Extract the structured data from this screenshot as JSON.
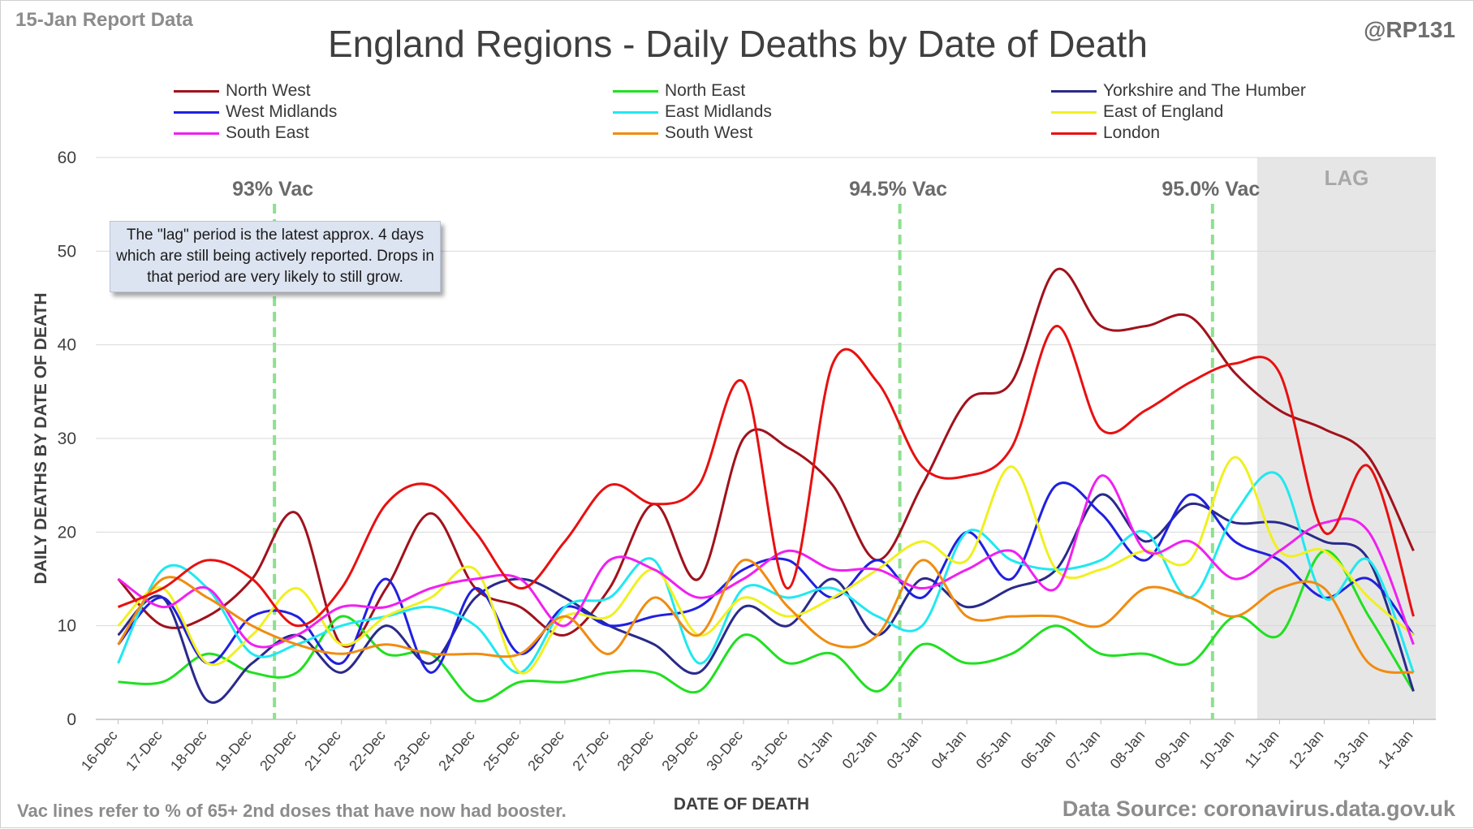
{
  "header": {
    "report_tag": "15-Jan Report Data",
    "handle": "@RP131",
    "title": "England Regions - Daily Deaths by Date of Death"
  },
  "footer": {
    "note": "Vac lines refer to % of 65+ 2nd doses that have now had booster.",
    "source": "Data Source: coronavirus.data.gov.uk"
  },
  "callout": {
    "text": "The \"lag\" period is the latest approx. 4 days which are still being actively reported.  Drops in that period are very likely to still grow."
  },
  "chart_data": {
    "type": "line",
    "title": "England Regions - Daily Deaths by Date of Death",
    "xlabel": "DATE OF DEATH",
    "ylabel": "DAILY DEATHS BY DATE OF DEATH",
    "ylim": [
      0,
      60
    ],
    "yticks": [
      0,
      10,
      20,
      30,
      40,
      50,
      60
    ],
    "grid": true,
    "legend_position": "top",
    "categories": [
      "16-Dec",
      "17-Dec",
      "18-Dec",
      "19-Dec",
      "20-Dec",
      "21-Dec",
      "22-Dec",
      "23-Dec",
      "24-Dec",
      "25-Dec",
      "26-Dec",
      "27-Dec",
      "28-Dec",
      "29-Dec",
      "30-Dec",
      "31-Dec",
      "01-Jan",
      "02-Jan",
      "03-Jan",
      "04-Jan",
      "05-Jan",
      "06-Jan",
      "07-Jan",
      "08-Jan",
      "09-Jan",
      "10-Jan",
      "11-Jan",
      "12-Jan",
      "13-Jan",
      "14-Jan"
    ],
    "lag_region": {
      "label": "LAG",
      "from": "11-Jan",
      "to": "14-Jan"
    },
    "vac_lines": [
      {
        "label": "93% Vac",
        "at": "19-Dec"
      },
      {
        "label": "94.5% Vac",
        "at": "02-Jan"
      },
      {
        "label": "95.0% Vac",
        "at": "09-Jan"
      }
    ],
    "series": [
      {
        "name": "North West",
        "color": "#a0121c",
        "values": [
          15,
          10,
          11,
          15,
          22,
          8,
          14,
          22,
          14,
          12,
          9,
          14,
          23,
          15,
          30,
          29,
          25,
          17,
          25,
          34,
          36,
          48,
          42,
          42,
          43,
          37,
          33,
          31,
          28,
          18
        ]
      },
      {
        "name": "North East",
        "color": "#20e020",
        "values": [
          4,
          4,
          7,
          5,
          5,
          11,
          7,
          7,
          2,
          4,
          4,
          5,
          5,
          3,
          9,
          6,
          7,
          3,
          8,
          6,
          7,
          10,
          7,
          7,
          6,
          11,
          9,
          18,
          11,
          3
        ]
      },
      {
        "name": "Yorkshire and The Humber",
        "color": "#2a2a8a",
        "values": [
          9,
          13,
          2,
          6,
          9,
          5,
          10,
          6,
          13,
          15,
          13,
          10,
          8,
          5,
          12,
          10,
          15,
          9,
          15,
          12,
          14,
          16,
          24,
          19,
          23,
          21,
          21,
          19,
          17,
          3
        ]
      },
      {
        "name": "West Midlands",
        "color": "#2020e0",
        "values": [
          8,
          13,
          6,
          11,
          11,
          6,
          15,
          5,
          14,
          7,
          12,
          10,
          11,
          12,
          16,
          17,
          13,
          17,
          13,
          20,
          15,
          25,
          22,
          17,
          24,
          19,
          17,
          13,
          15,
          9
        ]
      },
      {
        "name": "East Midlands",
        "color": "#20e8f0",
        "values": [
          6,
          16,
          14,
          7,
          8,
          10,
          11,
          12,
          10,
          5,
          12,
          13,
          17,
          6,
          14,
          13,
          14,
          11,
          10,
          20,
          17,
          16,
          17,
          20,
          13,
          22,
          26,
          13,
          17,
          5
        ]
      },
      {
        "name": "East of England",
        "color": "#f0f020",
        "values": [
          10,
          14,
          6,
          9,
          14,
          8,
          11,
          13,
          16,
          5,
          11,
          11,
          16,
          9,
          13,
          11,
          13,
          16,
          19,
          17,
          27,
          16,
          16,
          18,
          17,
          28,
          18,
          18,
          13,
          9
        ]
      },
      {
        "name": "South East",
        "color": "#f020f0",
        "values": [
          15,
          12,
          14,
          8,
          9,
          12,
          12,
          14,
          15,
          15,
          10,
          17,
          16,
          13,
          15,
          18,
          16,
          16,
          14,
          16,
          18,
          14,
          26,
          18,
          19,
          15,
          18,
          21,
          20,
          8
        ]
      },
      {
        "name": "South West",
        "color": "#f08c10",
        "values": [
          8,
          15,
          13,
          10,
          8,
          7,
          8,
          7,
          7,
          7,
          11,
          7,
          13,
          9,
          17,
          12,
          8,
          9,
          17,
          11,
          11,
          11,
          10,
          14,
          13,
          11,
          14,
          14,
          6,
          5
        ]
      },
      {
        "name": "London",
        "color": "#e81010",
        "values": [
          12,
          14,
          17,
          15,
          10,
          14,
          23,
          25,
          20,
          14,
          19,
          25,
          23,
          25,
          36,
          14,
          38,
          36,
          27,
          26,
          29,
          42,
          31,
          33,
          36,
          38,
          37,
          20,
          27,
          11
        ]
      }
    ]
  }
}
